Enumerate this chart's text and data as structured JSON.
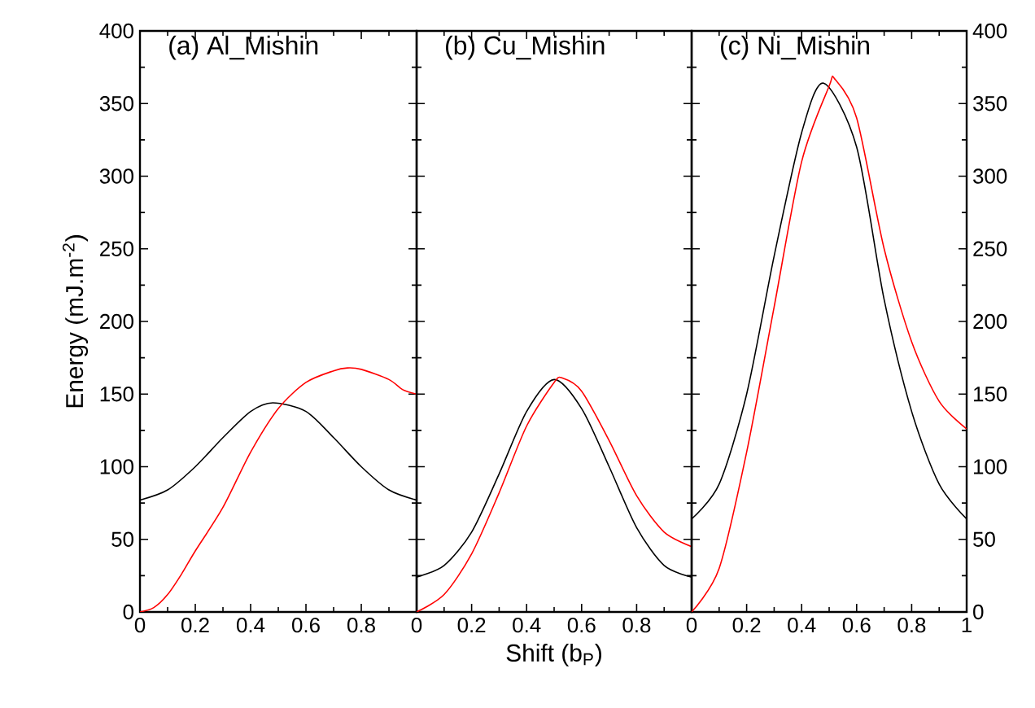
{
  "chart_data": [
    {
      "type": "line",
      "title": "(a) Al_Mishin",
      "ylabel": "Energy (mJ.m$^{-2}$)",
      "xlim": [
        0,
        1
      ],
      "xticks": [
        0,
        {
          "value": 0.1,
          "label": null
        },
        0.2,
        {
          "value": 0.3,
          "label": null
        },
        0.4,
        {
          "value": 0.5,
          "label": null
        },
        0.6,
        {
          "value": 0.7,
          "label": null
        },
        0.8,
        {
          "value": 0.9,
          "label": null
        },
        {
          "value": 1,
          "label": null
        }
      ],
      "ylim": [
        0,
        400
      ],
      "yticks": [
        0,
        {
          "value": 25,
          "label": null
        },
        50,
        {
          "value": 75,
          "label": null
        },
        100,
        {
          "value": 125,
          "label": null
        },
        150,
        {
          "value": 175,
          "label": null
        },
        200,
        {
          "value": 225,
          "label": null
        },
        250,
        {
          "value": 275,
          "label": null
        },
        300,
        {
          "value": 325,
          "label": null
        },
        350,
        {
          "value": 375,
          "label": null
        },
        400
      ],
      "series": [
        {
          "color": "#000000",
          "x": [
            0,
            0.1,
            0.2,
            0.3,
            0.4,
            0.48,
            0.6,
            0.7,
            0.8,
            0.9,
            1
          ],
          "values": [
            77,
            84,
            100,
            120,
            138,
            144,
            138,
            120,
            100,
            84,
            77
          ]
        },
        {
          "color": "#ff0000",
          "x": [
            0,
            0.05,
            0.1,
            0.15,
            0.2,
            0.3,
            0.4,
            0.5,
            0.6,
            0.7,
            0.75,
            0.8,
            0.9,
            0.95,
            1
          ],
          "values": [
            0,
            3,
            12,
            26,
            42,
            72,
            110,
            140,
            158,
            166,
            168,
            167,
            160,
            153,
            150
          ]
        }
      ]
    },
    {
      "type": "line",
      "title": "(b) Cu_Mishin",
      "xlabel": "Shift (b$_{P}$)",
      "tick_labels": "x",
      "xlim": [
        0,
        1
      ],
      "xticks": [
        0,
        {
          "value": 0.1,
          "label": null
        },
        0.2,
        {
          "value": 0.3,
          "label": null
        },
        0.4,
        {
          "value": 0.5,
          "label": null
        },
        0.6,
        {
          "value": 0.7,
          "label": null
        },
        0.8,
        {
          "value": 0.9,
          "label": null
        },
        {
          "value": 1,
          "label": null
        }
      ],
      "ylim": [
        0,
        400
      ],
      "yticks": [
        0,
        {
          "value": 25,
          "label": null
        },
        50,
        {
          "value": 75,
          "label": null
        },
        100,
        {
          "value": 125,
          "label": null
        },
        150,
        {
          "value": 175,
          "label": null
        },
        200,
        {
          "value": 225,
          "label": null
        },
        250,
        {
          "value": 275,
          "label": null
        },
        300,
        {
          "value": 325,
          "label": null
        },
        350,
        {
          "value": 375,
          "label": null
        },
        400
      ],
      "series": [
        {
          "color": "#000000",
          "x": [
            0,
            0.1,
            0.2,
            0.3,
            0.4,
            0.5,
            0.6,
            0.7,
            0.8,
            0.9,
            1
          ],
          "values": [
            24,
            32,
            55,
            95,
            138,
            160,
            140,
            100,
            58,
            32,
            24
          ]
        },
        {
          "color": "#ff0000",
          "x": [
            0,
            0.1,
            0.2,
            0.3,
            0.4,
            0.5,
            0.53,
            0.6,
            0.7,
            0.8,
            0.9,
            1
          ],
          "values": [
            0,
            12,
            40,
            82,
            128,
            158,
            161,
            152,
            118,
            80,
            55,
            45
          ]
        }
      ]
    },
    {
      "type": "line",
      "title": "(c) Ni_Mishin",
      "xlim": [
        0,
        1
      ],
      "xticks": [
        0,
        {
          "value": 0.1,
          "label": null
        },
        0.2,
        {
          "value": 0.3,
          "label": null
        },
        0.4,
        {
          "value": 0.5,
          "label": null
        },
        0.6,
        {
          "value": 0.7,
          "label": null
        },
        0.8,
        {
          "value": 0.9,
          "label": null
        },
        1
      ],
      "y2lim": [
        0,
        400
      ],
      "y2ticks": [
        0,
        {
          "value": 25,
          "label": null
        },
        50,
        {
          "value": 75,
          "label": null
        },
        100,
        {
          "value": 125,
          "label": null
        },
        150,
        {
          "value": 175,
          "label": null
        },
        200,
        {
          "value": 225,
          "label": null
        },
        250,
        {
          "value": 275,
          "label": null
        },
        300,
        {
          "value": 325,
          "label": null
        },
        350,
        {
          "value": 375,
          "label": null
        },
        400
      ],
      "series": [
        {
          "color": "#000000",
          "axis": "y2",
          "x": [
            0,
            0.1,
            0.2,
            0.3,
            0.4,
            0.48,
            0.6,
            0.7,
            0.8,
            0.9,
            1
          ],
          "values": [
            64,
            88,
            150,
            245,
            330,
            364,
            320,
            215,
            138,
            88,
            64
          ]
        },
        {
          "color": "#ff0000",
          "axis": "y2",
          "x": [
            0,
            0.1,
            0.2,
            0.3,
            0.4,
            0.5,
            0.52,
            0.6,
            0.7,
            0.8,
            0.9,
            1
          ],
          "values": [
            0,
            30,
            110,
            210,
            310,
            362,
            367,
            340,
            250,
            186,
            145,
            126
          ]
        }
      ]
    }
  ]
}
